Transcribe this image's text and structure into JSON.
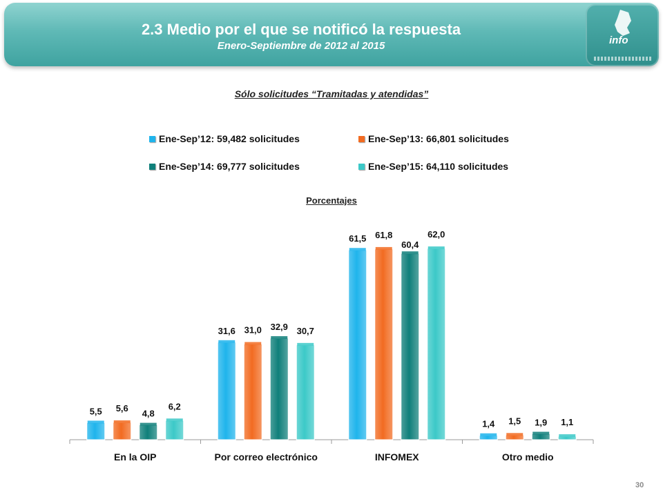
{
  "header": {
    "title": "2.3 Medio por el que se notificó la respuesta",
    "subtitle": "Enero-Septiembre de 2012 al 2015",
    "logo_text": "info"
  },
  "chart_subtitle": "Sólo solicitudes “Tramitadas y atendidas”",
  "unit_label": "Porcentajes",
  "page_number": "30",
  "chart_data": {
    "type": "bar",
    "categories": [
      "En la OIP",
      "Por correo electrónico",
      "INFOMEX",
      "Otro medio"
    ],
    "series": [
      {
        "name": "Ene-Sep’12: 59,482 solicitudes",
        "color": "#1fb4ec",
        "values": [
          5.5,
          31.6,
          61.5,
          1.4
        ],
        "labels": [
          "5,5",
          "31,6",
          "61,5",
          "1,4"
        ]
      },
      {
        "name": "Ene-Sep’13: 66,801 solicitudes",
        "color": "#f26b21",
        "values": [
          5.6,
          31.0,
          61.8,
          1.5
        ],
        "labels": [
          "5,6",
          "31,0",
          "61,8",
          "1,5"
        ]
      },
      {
        "name": "Ene-Sep’14: 69,777 solicitudes",
        "color": "#0f7f7a",
        "values": [
          4.8,
          32.9,
          60.4,
          1.9
        ],
        "labels": [
          "4,8",
          "32,9",
          "60,4",
          "1,9"
        ]
      },
      {
        "name": "Ene-Sep’15: 64,110 solicitudes",
        "color": "#3cc9c8",
        "values": [
          6.2,
          30.7,
          62.0,
          1.1
        ],
        "labels": [
          "6,2",
          "30,7",
          "62,0",
          "1,1"
        ]
      }
    ],
    "ylim": [
      0,
      62
    ],
    "legend_position": "top",
    "grid": false
  }
}
